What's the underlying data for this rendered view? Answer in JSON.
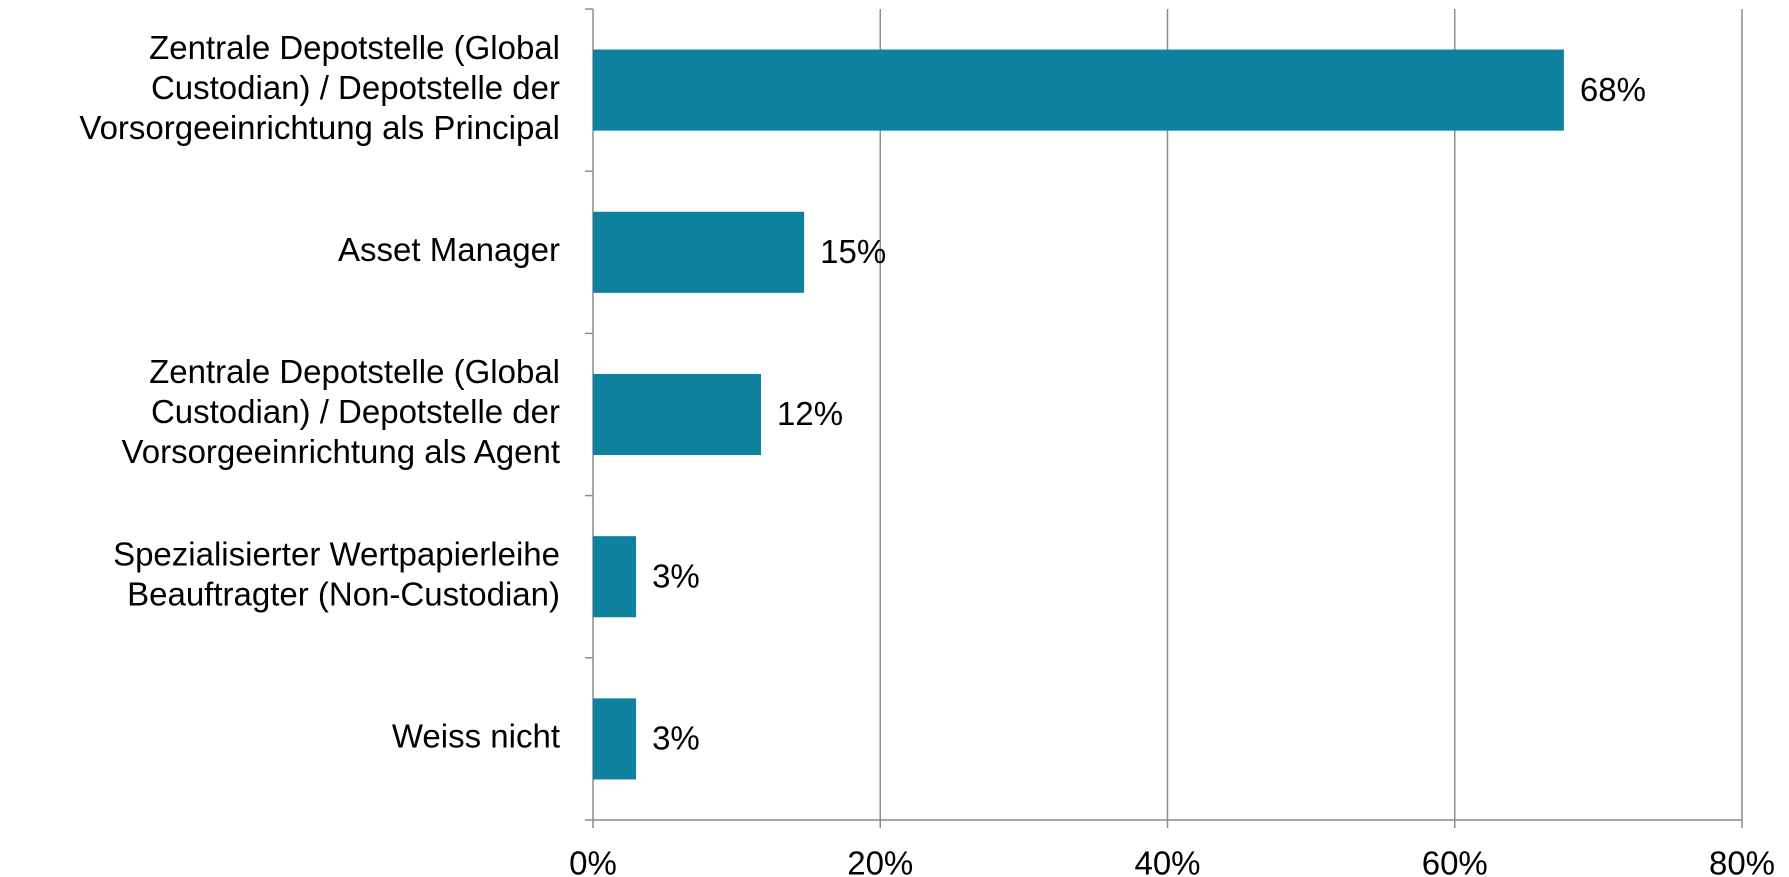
{
  "chart_data": {
    "type": "barh",
    "categories": [
      [
        "Zentrale Depotstelle (Global",
        "Custodian) / Depotstelle der",
        "Vorsorgeeinrichtung als Principal"
      ],
      [
        "Asset Manager"
      ],
      [
        "Zentrale Depotstelle (Global",
        "Custodian) / Depotstelle der",
        "Vorsorgeeinrichtung als Agent"
      ],
      [
        "Spezialisierter Wertpapierleihe",
        "Beauftragter (Non-Custodian)"
      ],
      [
        "Weiss nicht"
      ]
    ],
    "values": [
      67.6,
      14.7,
      11.7,
      3,
      3
    ],
    "value_labels": [
      "68%",
      "15%",
      "12%",
      "3%",
      "3%"
    ],
    "color": "#0e819e",
    "xlim": [
      0,
      80
    ],
    "xticks": [
      {
        "value": 0,
        "label": "0%"
      },
      {
        "value": 20,
        "label": "20%"
      },
      {
        "value": 40,
        "label": "40%"
      },
      {
        "value": 60,
        "label": "60%"
      },
      {
        "value": 80,
        "label": "80%"
      }
    ],
    "grid": true
  }
}
